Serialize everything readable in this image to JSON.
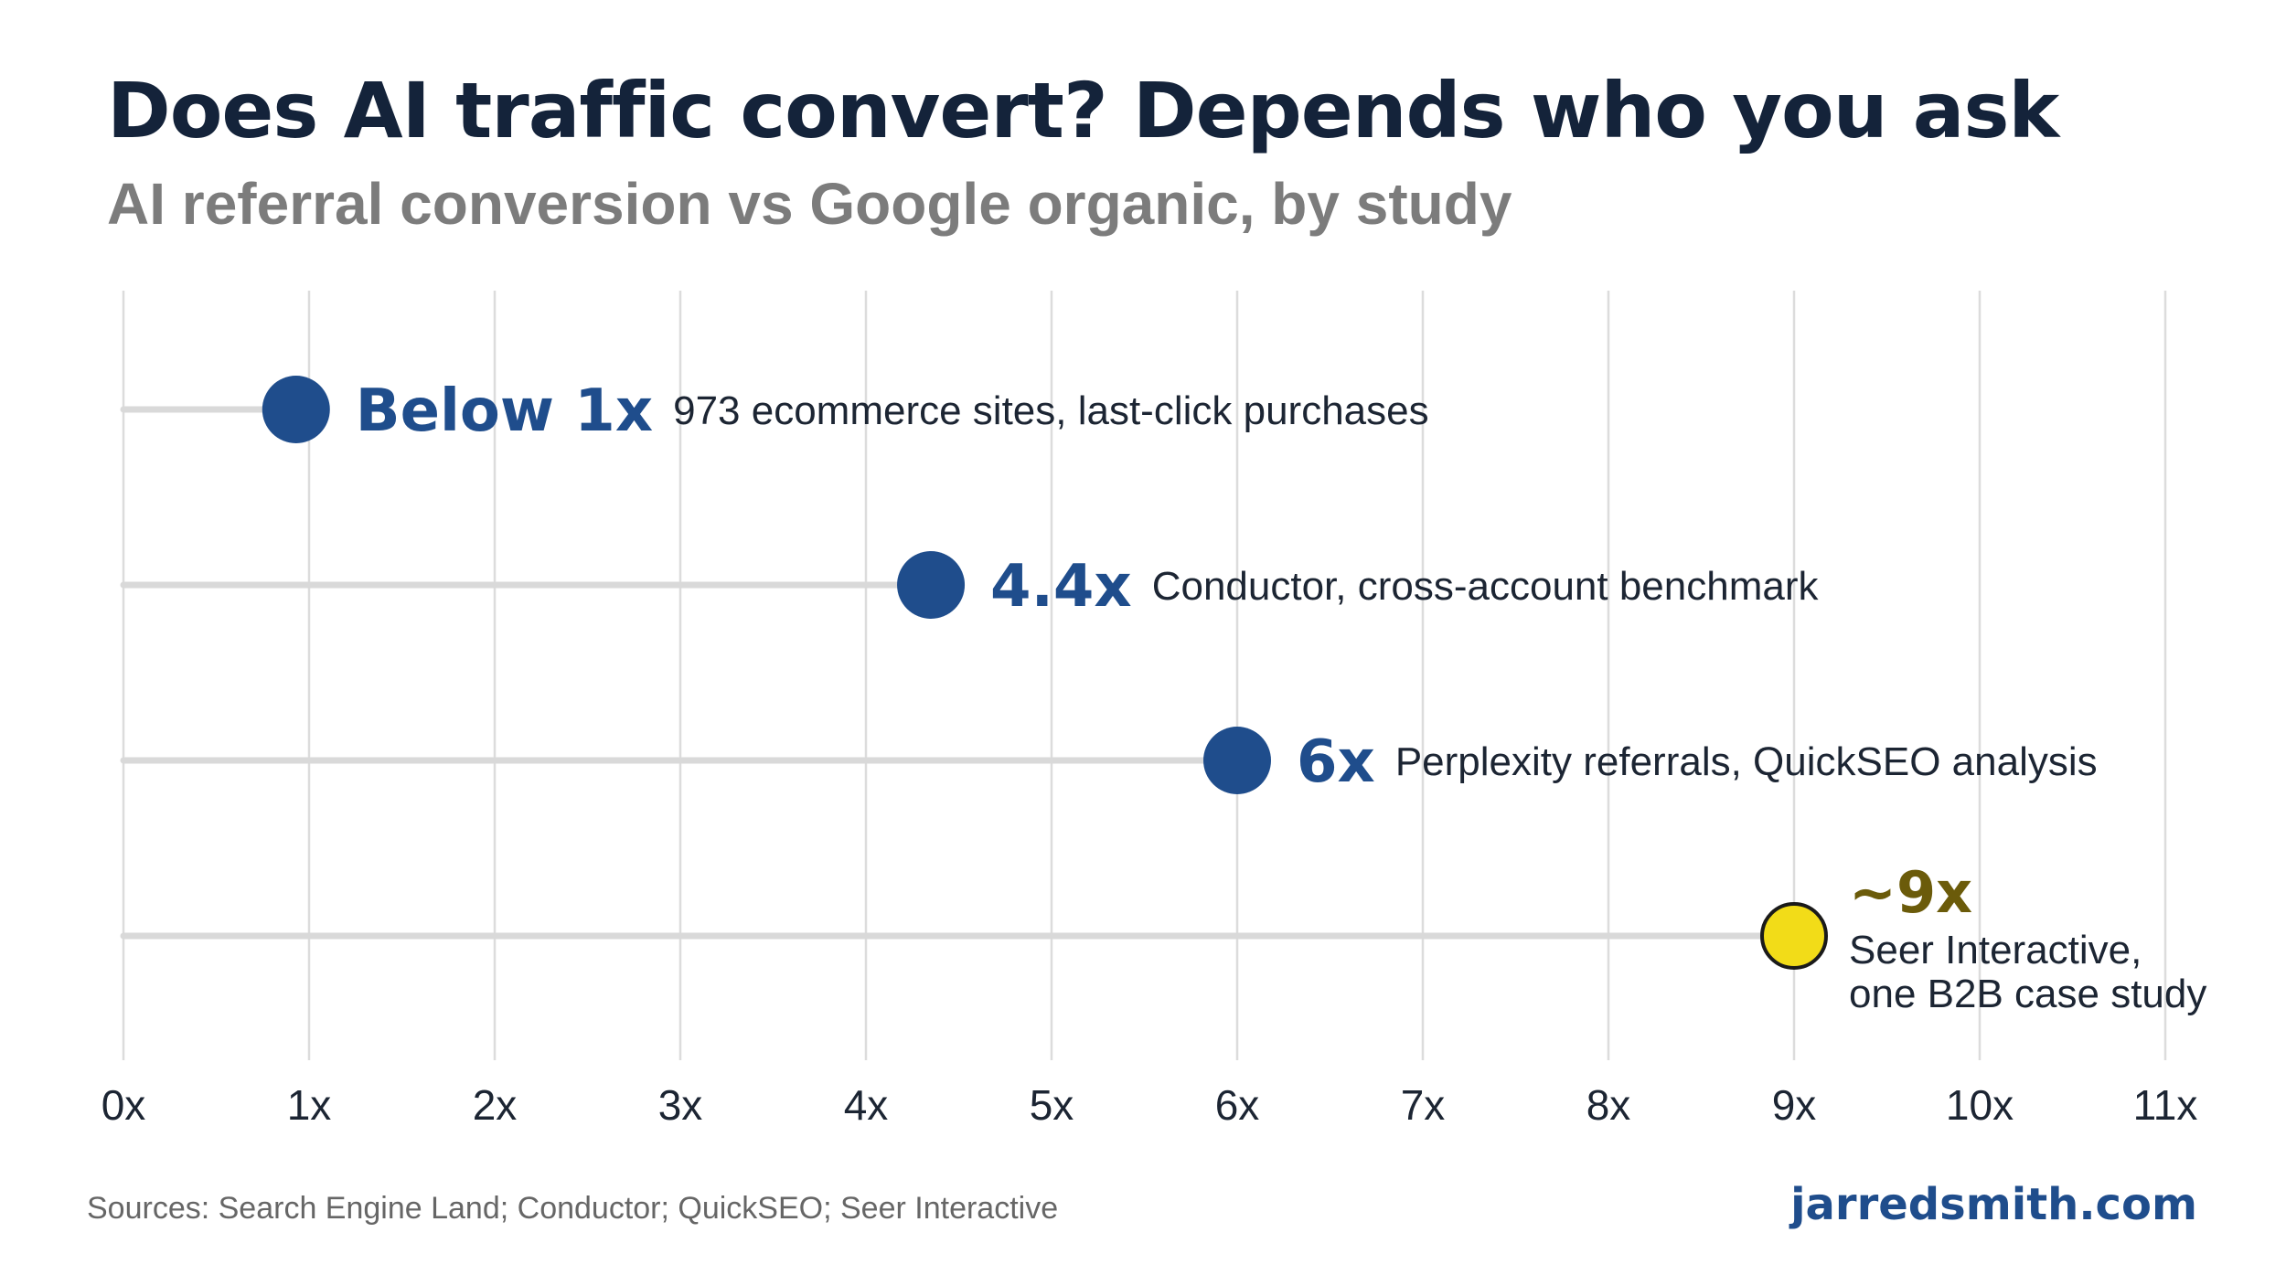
{
  "header": {
    "title": "Does AI traffic convert? Depends who you ask",
    "subtitle": "AI referral conversion vs Google organic, by study"
  },
  "footer": {
    "sources": "Sources: Search Engine Land; Conductor; QuickSEO; Seer Interactive",
    "brand": "jarredsmith.com"
  },
  "colors": {
    "primary": "#1f4d8c",
    "highlight": "#f2dc18",
    "highlight_label": "#6b5b0a",
    "track": "#d9d9d9",
    "grid": "#dcdcdc",
    "text": "#1c2533"
  },
  "chart_data": {
    "type": "dot",
    "title": "Does AI traffic convert? Depends who you ask",
    "subtitle": "AI referral conversion vs Google organic, by study",
    "xlim": [
      0,
      11
    ],
    "xticks": [
      "0x",
      "1x",
      "2x",
      "3x",
      "4x",
      "5x",
      "6x",
      "7x",
      "8x",
      "9x",
      "10x",
      "11x"
    ],
    "grid": "vertical",
    "points": [
      {
        "value": 0.93,
        "value_label": "Below 1x",
        "description": [
          "973 ecommerce sites, last-click purchases"
        ],
        "highlight": false
      },
      {
        "value": 4.35,
        "value_label": "4.4x",
        "description": [
          "Conductor, cross-account benchmark"
        ],
        "highlight": false
      },
      {
        "value": 6.0,
        "value_label": "6x",
        "description": [
          "Perplexity referrals, QuickSEO analysis"
        ],
        "highlight": false
      },
      {
        "value": 9.0,
        "value_label": "~9x",
        "description": [
          "Seer Interactive,",
          "one B2B case study"
        ],
        "highlight": true
      }
    ]
  }
}
